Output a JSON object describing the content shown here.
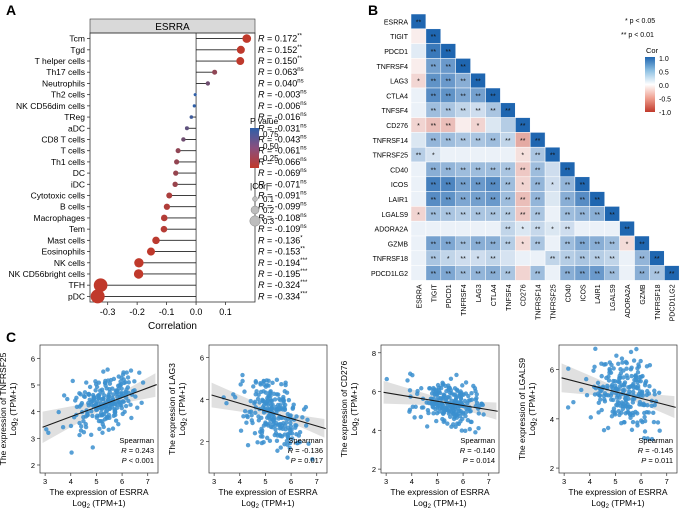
{
  "panels": {
    "a": "A",
    "b": "B",
    "c": "C"
  },
  "colors": {
    "lollipop_low": "#c0392b",
    "lollipop_high": "#2f5fa8",
    "heat_pos": "#1f66b0",
    "heat_neg": "#c0392b",
    "scatter": "#3b8fcf",
    "band": "#d8d8d8",
    "line": "#1a1a1a"
  },
  "chart_data": [
    {
      "type": "lollipop",
      "title": "ESRRA",
      "xlabel": "Correlation",
      "xlim": [
        -0.36,
        0.2
      ],
      "xticks": [
        -0.3,
        -0.2,
        -0.1,
        0.0,
        0.1
      ],
      "xtick_labels": [
        "-0.3",
        "-0.2",
        "-0.1",
        "0.0",
        "0.1"
      ],
      "categories": [
        "Tcm",
        "Tgd",
        "T helper cells",
        "Th17 cells",
        "Neutrophils",
        "Th2 cells",
        "NK CD56dim cells",
        "TReg",
        "aDC",
        "CD8 T cells",
        "T cells",
        "Th1 cells",
        "DC",
        "iDC",
        "Cytotoxic cells",
        "B cells",
        "Macrophages",
        "Tem",
        "Mast cells",
        "Eosinophils",
        "NK cells",
        "NK CD56bright cells",
        "TFH",
        "pDC"
      ],
      "values": [
        0.172,
        0.152,
        0.15,
        0.063,
        0.04,
        -0.003,
        -0.006,
        -0.016,
        -0.031,
        -0.043,
        -0.061,
        -0.066,
        -0.069,
        -0.071,
        -0.091,
        -0.099,
        -0.108,
        -0.109,
        -0.136,
        -0.153,
        -0.194,
        -0.195,
        -0.324,
        -0.334
      ],
      "pvalues": [
        0.002,
        0.01,
        0.01,
        0.3,
        0.5,
        0.95,
        0.9,
        0.8,
        0.6,
        0.5,
        0.3,
        0.28,
        0.26,
        0.24,
        0.13,
        0.1,
        0.08,
        0.07,
        0.03,
        0.009,
        0.001,
        0.001,
        0.0001,
        0.0001
      ],
      "value_labels": [
        "= 0.172",
        "= 0.152",
        "= 0.150",
        "= 0.063",
        "= 0.040",
        "= -0.003",
        "= -0.006",
        "= -0.016",
        "= -0.031",
        "= -0.043",
        "= -0.061",
        "= -0.066",
        "= -0.069",
        "= -0.071",
        "= -0.091",
        "= -0.099",
        "= -0.108",
        "= -0.109",
        "= -0.136",
        "= -0.153",
        "= -0.194",
        "= -0.195",
        "= -0.324",
        "= -0.334"
      ],
      "sig_labels": [
        "**",
        "**",
        "**",
        "ns",
        "ns",
        "ns",
        "ns",
        "ns",
        "ns",
        "ns",
        "ns",
        "ns",
        "ns",
        "ns",
        "ns",
        "ns",
        "ns",
        "ns",
        "*",
        "**",
        "***",
        "***",
        "***",
        "***"
      ],
      "r_symbol": "R",
      "legend_p_title": "P value",
      "legend_p_ticks": [
        "0.75",
        "0.50",
        "0.25"
      ],
      "legend_cor_title": "|Cor|",
      "legend_cor_ticks": [
        "0.1",
        "0.2",
        "0.3"
      ]
    },
    {
      "type": "heatmap",
      "genes": [
        "ESRRA",
        "TIGIT",
        "PDCD1",
        "TNFRSF4",
        "LAG3",
        "CTLA4",
        "TNFSF4",
        "CD276",
        "TNFRSF14",
        "TNFRSF25",
        "CD40",
        "ICOS",
        "LAIR1",
        "LGALS9",
        "ADORA2A",
        "GZMB",
        "TNFRSF18",
        "PDCD1LG2"
      ],
      "matrix": [
        [
          1
        ],
        [
          -0.05,
          1
        ],
        [
          0.08,
          0.85,
          1
        ],
        [
          -0.05,
          0.55,
          0.6,
          1
        ],
        [
          -0.14,
          0.65,
          0.6,
          0.45,
          1
        ],
        [
          0.05,
          0.7,
          0.65,
          0.5,
          0.55,
          1
        ],
        [
          0.05,
          0.35,
          0.3,
          0.2,
          0.15,
          0.3,
          1
        ],
        [
          -0.15,
          -0.25,
          -0.25,
          -0.05,
          -0.15,
          0.1,
          0.25,
          1
        ],
        [
          0.1,
          0.4,
          0.35,
          0.3,
          0.3,
          0.35,
          0.2,
          -0.35,
          1
        ],
        [
          0.24,
          0.12,
          0.05,
          0.05,
          0.05,
          0.05,
          0.05,
          -0.1,
          0.3,
          1
        ],
        [
          0.05,
          0.45,
          0.4,
          0.35,
          0.35,
          0.35,
          0.3,
          -0.2,
          0.35,
          0.15,
          1
        ],
        [
          0.05,
          0.8,
          0.75,
          0.55,
          0.6,
          0.7,
          0.35,
          -0.15,
          0.4,
          0.15,
          0.4,
          1
        ],
        [
          0.05,
          0.7,
          0.65,
          0.5,
          0.55,
          0.6,
          0.35,
          -0.25,
          0.4,
          0.1,
          0.45,
          0.7,
          1
        ],
        [
          -0.15,
          0.35,
          0.3,
          0.25,
          0.3,
          0.3,
          0.25,
          -0.2,
          0.3,
          0.05,
          0.35,
          0.4,
          0.45,
          1
        ],
        [
          0.05,
          0.05,
          0.05,
          0.05,
          0.05,
          0.05,
          0.2,
          0.1,
          0.18,
          0.1,
          0.15,
          0.05,
          0.05,
          0.05,
          1
        ],
        [
          0.05,
          0.55,
          0.5,
          0.35,
          0.45,
          0.45,
          0.25,
          -0.12,
          0.3,
          0.05,
          0.35,
          0.5,
          0.45,
          0.35,
          -0.12,
          1
        ],
        [
          0.05,
          0.3,
          0.2,
          0.15,
          0.15,
          0.2,
          0.12,
          0.05,
          0.05,
          0.2,
          0.25,
          0.3,
          0.25,
          0.2,
          0.05,
          0.4,
          1
        ],
        [
          0.05,
          0.55,
          0.5,
          0.35,
          0.4,
          0.45,
          0.3,
          -0.15,
          0.35,
          0.05,
          0.45,
          0.55,
          0.6,
          0.35,
          0.05,
          0.45,
          0.3,
          1
        ]
      ],
      "stars": [
        [
          "**"
        ],
        [
          "",
          "**"
        ],
        [
          "",
          "**",
          "**"
        ],
        [
          "",
          "**",
          "**",
          "**"
        ],
        [
          "*",
          "**",
          "**",
          "**",
          "**"
        ],
        [
          "",
          "**",
          "**",
          "**",
          "**",
          "**"
        ],
        [
          "",
          "**",
          "**",
          "**",
          "**",
          "**",
          "**"
        ],
        [
          "*",
          "**",
          "**",
          "",
          "*",
          "",
          "",
          "**"
        ],
        [
          "",
          "**",
          "**",
          "**",
          "**",
          "**",
          "**",
          "**",
          "**"
        ],
        [
          "**",
          "*",
          "",
          "",
          "",
          "",
          "",
          "*",
          "**",
          "**"
        ],
        [
          "",
          "**",
          "**",
          "**",
          "**",
          "**",
          "**",
          "**",
          "**",
          "",
          "**"
        ],
        [
          "",
          "**",
          "**",
          "**",
          "**",
          "**",
          "**",
          "*",
          "**",
          "*",
          "**",
          "**"
        ],
        [
          "",
          "**",
          "**",
          "**",
          "**",
          "**",
          "**",
          "**",
          "**",
          "",
          "**",
          "**",
          "**"
        ],
        [
          "*",
          "**",
          "**",
          "**",
          "**",
          "**",
          "**",
          "**",
          "**",
          "",
          "**",
          "**",
          "**",
          "**"
        ],
        [
          "",
          "",
          "",
          "",
          "",
          "",
          "**",
          "*",
          "**",
          "*",
          "**",
          "",
          "",
          "",
          "**"
        ],
        [
          "",
          "**",
          "**",
          "**",
          "**",
          "**",
          "**",
          "*",
          "**",
          "",
          "**",
          "**",
          "**",
          "**",
          "*",
          "**"
        ],
        [
          "",
          "**",
          "*",
          "**",
          "*",
          "**",
          "",
          "",
          "",
          "**",
          "**",
          "**",
          "**",
          "**",
          "",
          "**",
          "**"
        ],
        [
          "",
          "**",
          "**",
          "**",
          "**",
          "**",
          "**",
          "",
          "**",
          "",
          "**",
          "**",
          "**",
          "**",
          "",
          "**",
          "**",
          "**"
        ]
      ],
      "legend_title": "Cor",
      "legend_ticks": [
        "1.0",
        "0.5",
        "0.0",
        "-0.5",
        "-1.0"
      ],
      "sig_key": [
        "* p < 0.05",
        "** p < 0.01"
      ]
    },
    {
      "type": "scatter",
      "xlabel_top": "The expression of ESRRA",
      "xlabel_bottom": "Log",
      "xlabel_sub": "2",
      "xlabel_tail": " (TPM+1)",
      "ylabel_bottom": "Log",
      "ylabel_sub": "2",
      "ylabel_tail": " (TPM+1)",
      "method": "Spearman",
      "plots": [
        {
          "gene": "TNFRSF25",
          "ylabel": "The expression of TNFRSF25",
          "xlim": [
            2.8,
            7.4
          ],
          "ylim": [
            1.7,
            6.5
          ],
          "xticks": [
            3,
            4,
            5,
            6,
            7
          ],
          "yticks": [
            2,
            3,
            4,
            5,
            6
          ],
          "R": "0.243",
          "P": "< 0.001",
          "p_prefix": "",
          "slope": 0.36,
          "intercept": 2.37,
          "center": 4.4,
          "spread": 0.65,
          "seed": 11
        },
        {
          "gene": "LAG3",
          "ylabel": "The expression of LAG3",
          "xlim": [
            2.8,
            7.4
          ],
          "ylim": [
            0.5,
            6.6
          ],
          "xticks": [
            3,
            4,
            5,
            6,
            7
          ],
          "yticks": [
            2,
            4,
            6
          ],
          "R": "-0.136",
          "P": "0.017",
          "p_prefix": "= ",
          "slope": -0.36,
          "intercept": 5.26,
          "center": 3.3,
          "spread": 1.0,
          "seed": 23
        },
        {
          "gene": "CD276",
          "ylabel": "The expression of CD276",
          "xlim": [
            2.8,
            7.4
          ],
          "ylim": [
            1.8,
            8.4
          ],
          "xticks": [
            3,
            4,
            5,
            6,
            7
          ],
          "yticks": [
            2,
            4,
            6,
            8
          ],
          "R": "-0.140",
          "P": "0.014",
          "p_prefix": "= ",
          "slope": -0.22,
          "intercept": 6.6,
          "center": 5.4,
          "spread": 0.75,
          "seed": 37
        },
        {
          "gene": "LGALS9",
          "ylabel": "The expression of LGALS9",
          "xlim": [
            2.8,
            7.4
          ],
          "ylim": [
            1.8,
            7.0
          ],
          "xticks": [
            3,
            4,
            5,
            6,
            7
          ],
          "yticks": [
            2,
            4,
            6
          ],
          "R": "-0.145",
          "P": "0.011",
          "p_prefix": "= ",
          "slope": -0.27,
          "intercept": 6.45,
          "center": 5.0,
          "spread": 0.9,
          "seed": 53
        }
      ]
    }
  ]
}
